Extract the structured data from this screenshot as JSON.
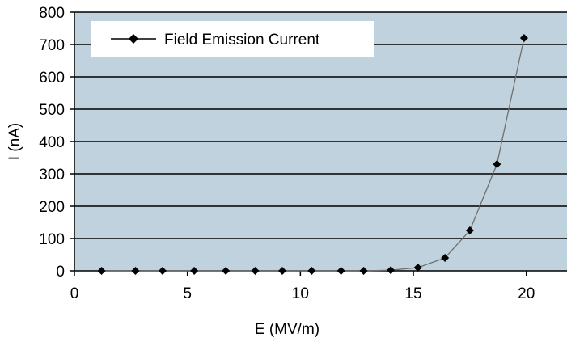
{
  "chart_data": {
    "type": "scatter",
    "title": "",
    "xlabel": "E (MV/m)",
    "ylabel": "I (nA)",
    "xlim": [
      0,
      21.8
    ],
    "ylim": [
      0,
      800
    ],
    "x_ticks": [
      0,
      5,
      10,
      15,
      20
    ],
    "y_ticks": [
      0,
      100,
      200,
      300,
      400,
      500,
      600,
      700,
      800
    ],
    "grid": "horizontal",
    "legend_position": "top-left",
    "plot_background": "#bfd2dd",
    "series": [
      {
        "name": "Field Emission Current",
        "color": "#000000",
        "line_color": "#6f6f6f",
        "marker": "diamond",
        "x": [
          1.2,
          2.7,
          3.9,
          5.3,
          6.7,
          8.0,
          9.2,
          10.5,
          11.8,
          12.8,
          14.0,
          15.2,
          16.4,
          17.5,
          18.7,
          19.9
        ],
        "values": [
          0,
          0,
          0,
          0,
          0,
          0,
          0,
          0,
          0,
          0,
          2,
          10,
          40,
          125,
          330,
          720
        ]
      }
    ]
  }
}
